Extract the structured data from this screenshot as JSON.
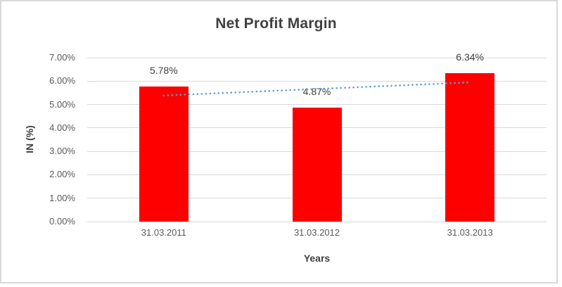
{
  "chart": {
    "title": "Net Profit Margin",
    "y_axis_title": "IN (%)",
    "x_axis_title": "Years"
  },
  "chart_data": {
    "type": "bar",
    "title": "Net Profit Margin",
    "categories": [
      "31.03.2011",
      "31.03.2012",
      "31.03.2013"
    ],
    "values": [
      5.78,
      4.87,
      6.34
    ],
    "data_labels": [
      "5.78%",
      "4.87%",
      "6.34%"
    ],
    "xlabel": "Years",
    "ylabel": "IN (%)",
    "ylim": [
      0,
      7
    ],
    "y_ticks": [
      "0.00%",
      "1.00%",
      "2.00%",
      "3.00%",
      "4.00%",
      "5.00%",
      "6.00%",
      "7.00%"
    ],
    "grid": true,
    "legend": false,
    "trendline": {
      "type": "linear",
      "style": "dotted"
    },
    "colors": {
      "bar": "#FF0000",
      "trendline": "#5B9BD5",
      "gridline": "#D9D9D9",
      "tick_text": "#595959",
      "title_text": "#404040",
      "frame_border": "#D9D9D9"
    }
  }
}
